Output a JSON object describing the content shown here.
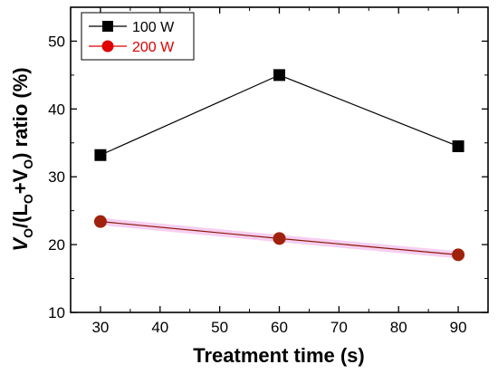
{
  "chart_data": {
    "type": "line",
    "x": [
      30,
      60,
      90
    ],
    "series": [
      {
        "name": "100 W",
        "values": [
          33.2,
          45.0,
          34.5
        ],
        "color": "#000000",
        "marker": "square"
      },
      {
        "name": "200 W",
        "values": [
          23.4,
          20.9,
          18.5
        ],
        "color": "#e00000",
        "marker": "circle",
        "marker_fill": "#a0220d",
        "line_color": "#8b1a0a"
      }
    ],
    "xlabel": "Treatment time (s)",
    "ylabel_parts": {
      "v": "V",
      "sub1": "O",
      "mid": "/(L",
      "sub2": "O",
      "plus": "+V",
      "sub3": "O",
      "tail": ") ratio (%)"
    },
    "xlim": [
      25,
      95
    ],
    "ylim": [
      10,
      55
    ],
    "xticks": [
      30,
      40,
      50,
      60,
      70,
      80,
      90
    ],
    "yticks": [
      10,
      20,
      30,
      40,
      50
    ],
    "grid": false,
    "legend_position": "top-left"
  }
}
